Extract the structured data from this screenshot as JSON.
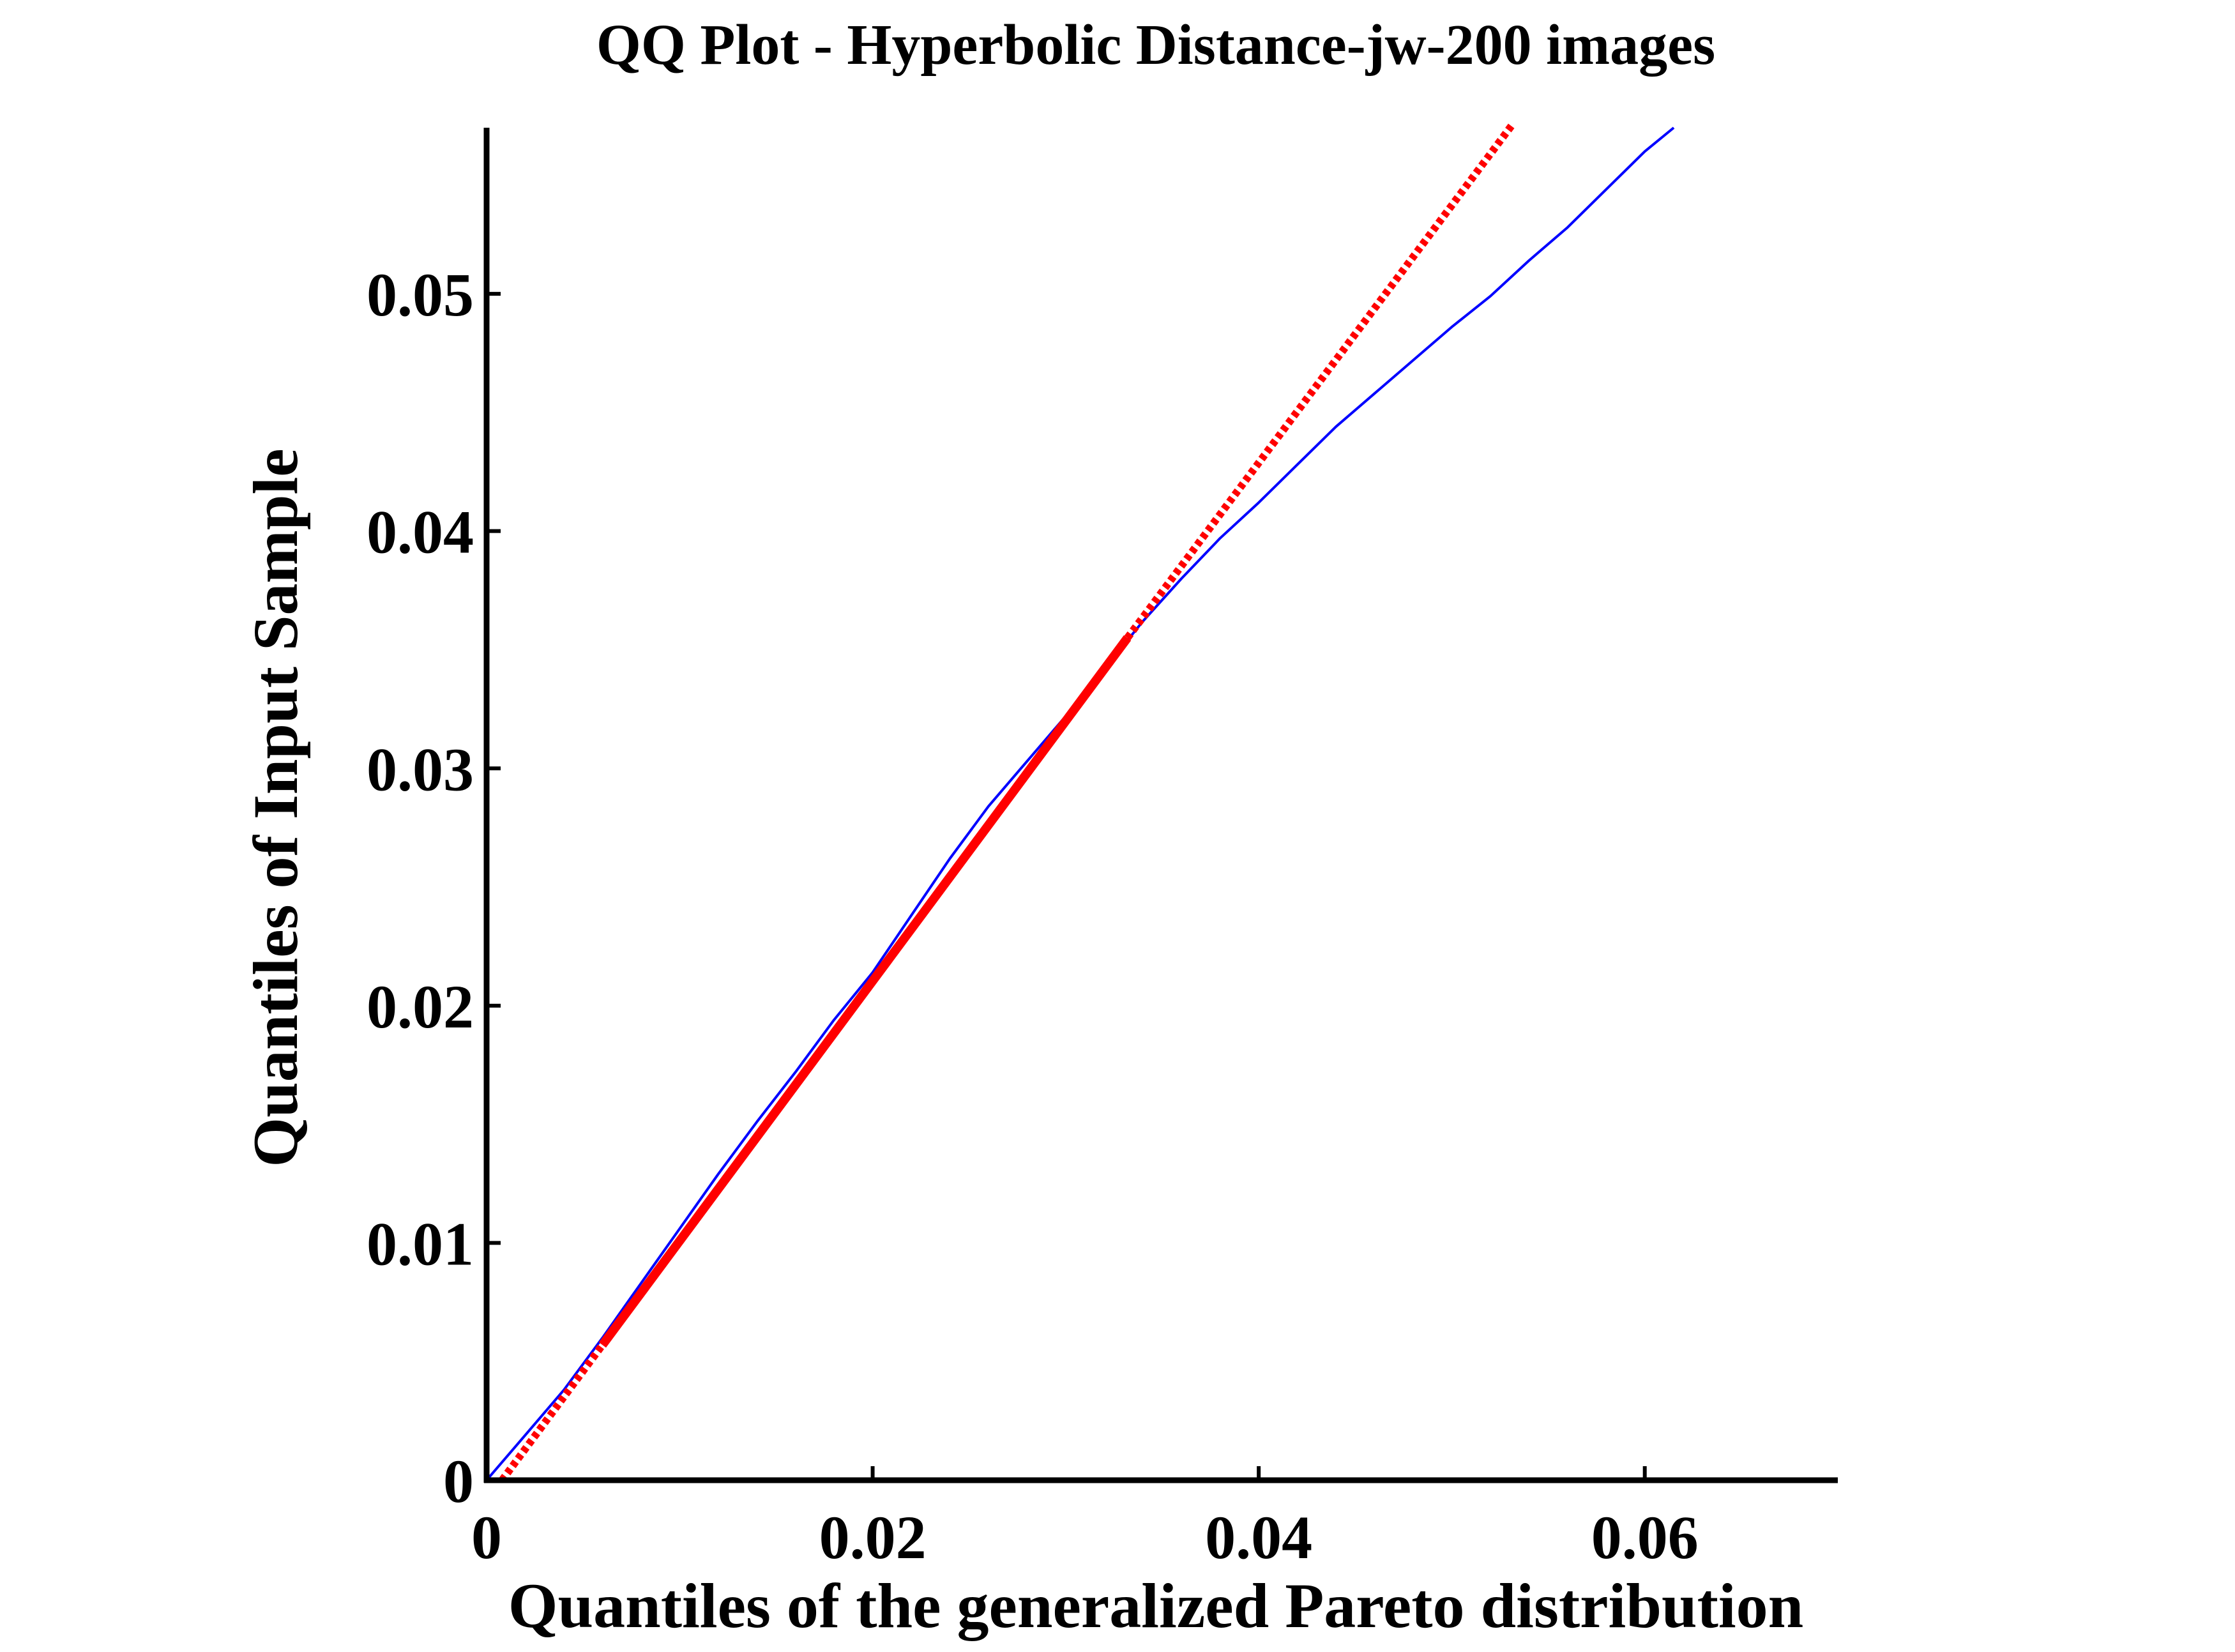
{
  "chart_data": {
    "type": "line",
    "title": "QQ Plot -  Hyperbolic Distance-jw-200 images",
    "xlabel": "Quantiles of  the generalized Pareto distribution",
    "ylabel": "Quantiles of Input Sample",
    "xlim": [
      0,
      0.07
    ],
    "ylim": [
      0,
      0.057
    ],
    "x_ticks": [
      0,
      0.02,
      0.04,
      0.06
    ],
    "x_tick_labels": [
      "0",
      "0.02",
      "0.04",
      "0.06"
    ],
    "y_ticks": [
      0,
      0.01,
      0.02,
      0.03,
      0.04,
      0.05
    ],
    "y_tick_labels": [
      "0",
      "0.01",
      "0.02",
      "0.03",
      "0.04",
      "0.05"
    ],
    "grid": false,
    "legend": "none",
    "colors": {
      "sample": "#0000ff",
      "reference": "#ff0000",
      "axes": "#000000"
    },
    "series": [
      {
        "style": "solid-thin",
        "color": "#0000ff",
        "x": [
          0,
          0.002,
          0.004,
          0.006,
          0.008,
          0.01,
          0.012,
          0.014,
          0.016,
          0.018,
          0.02,
          0.022,
          0.024,
          0.026,
          0.028,
          0.03,
          0.032,
          0.034,
          0.036,
          0.038,
          0.04,
          0.042,
          0.044,
          0.046,
          0.048,
          0.05,
          0.052,
          0.054,
          0.056,
          0.058,
          0.06,
          0.0615
        ],
        "y": [
          0,
          0.0019,
          0.0038,
          0.006,
          0.0083,
          0.0106,
          0.0129,
          0.0151,
          0.0172,
          0.0194,
          0.0214,
          0.0238,
          0.0262,
          0.0284,
          0.0303,
          0.0322,
          0.0342,
          0.0362,
          0.038,
          0.0397,
          0.0412,
          0.0428,
          0.0444,
          0.0458,
          0.0472,
          0.0486,
          0.0499,
          0.0514,
          0.0528,
          0.0544,
          0.056,
          0.057
        ]
      },
      {
        "style": "solid-thick",
        "color": "#ff0000",
        "x": [
          0.006,
          0.0332
        ],
        "y": [
          0.0057,
          0.0355
        ]
      },
      {
        "style": "dashed",
        "color": "#ff0000",
        "x": [
          0.0008,
          0.006
        ],
        "y": [
          0,
          0.0057
        ]
      },
      {
        "style": "dashed",
        "color": "#ff0000",
        "x": [
          0.0332,
          0.0532
        ],
        "y": [
          0.0355,
          0.0572
        ]
      }
    ]
  }
}
